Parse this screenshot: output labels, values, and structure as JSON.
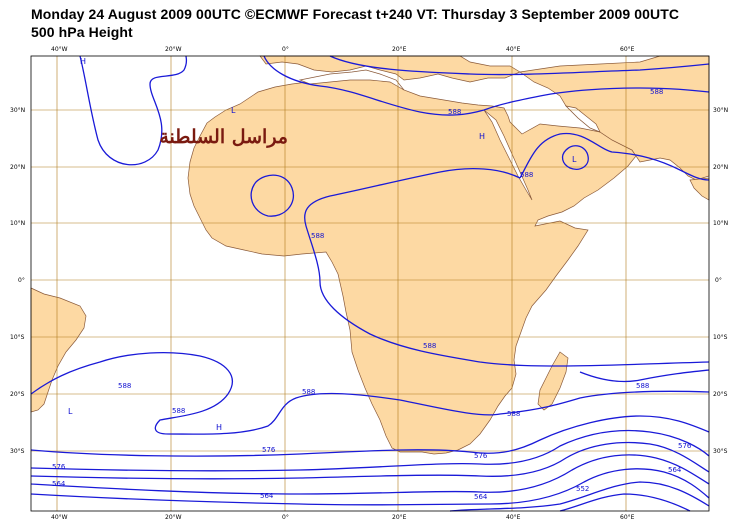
{
  "header": {
    "title_line1": "Monday 24 August 2009 00UTC ©ECMWF Forecast t+240 VT: Thursday 3 September 2009 00UTC",
    "title_line2": "500 hPa Height"
  },
  "axes": {
    "lon_labels": [
      "40°W",
      "20°W",
      "0°",
      "20°E",
      "40°E",
      "60°E"
    ],
    "lat_labels": [
      "30°N",
      "20°N",
      "10°N",
      "0°",
      "10°S",
      "20°S",
      "30°S"
    ]
  },
  "contour_labels": [
    "588",
    "588",
    "588",
    "588",
    "588",
    "588",
    "588",
    "588",
    "588",
    "588",
    "576",
    "576",
    "576",
    "576",
    "564",
    "564",
    "564",
    "564",
    "552"
  ],
  "pressure_markers": [
    "H",
    "L",
    "H",
    "L",
    "H",
    "L"
  ],
  "watermark": "مراسل السلطنة",
  "colors": {
    "land": "#fdd9a3",
    "ocean": "#ffffff",
    "coast": "#8a5a3a",
    "grid": "#b07a1c",
    "contour": "#1a1ad8",
    "frame": "#000000"
  }
}
